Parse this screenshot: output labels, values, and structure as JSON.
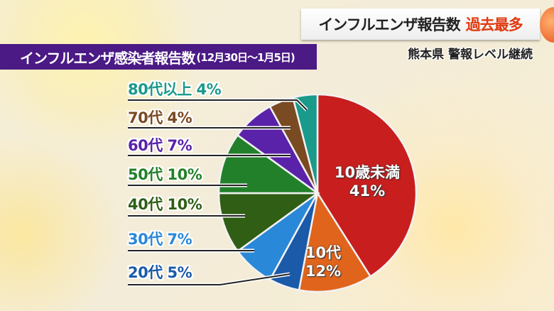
{
  "headline": {
    "main": "インフルエンザ報告数",
    "highlight": "過去最多"
  },
  "subheadline": "熊本県 警報レベル継続",
  "chart_data": {
    "type": "pie",
    "title": "インフルエンザ感染者報告数",
    "period": "(12月30日～1月5日)",
    "unit": "%",
    "slices": [
      {
        "label": "10歳未満",
        "value": 41,
        "color": "#c81e1e",
        "text": "10歳未満",
        "pct": "41%"
      },
      {
        "label": "10代",
        "value": 12,
        "color": "#e0641c",
        "text": "10代",
        "pct": "12%"
      },
      {
        "label": "20代",
        "value": 5,
        "color": "#1a5aa8",
        "text": "20代 5%"
      },
      {
        "label": "30代",
        "value": 7,
        "color": "#2a88d8",
        "text": "30代 7%"
      },
      {
        "label": "40代",
        "value": 10,
        "color": "#2f5e14",
        "text": "40代 10%"
      },
      {
        "label": "50代",
        "value": 10,
        "color": "#23802a",
        "text": "50代 10%"
      },
      {
        "label": "60代",
        "value": 7,
        "color": "#5a22a8",
        "text": "60代 7%"
      },
      {
        "label": "70代",
        "value": 4,
        "color": "#7a4a22",
        "text": "70代 4%"
      },
      {
        "label": "80代以上",
        "value": 4,
        "color": "#1a9a8a",
        "text": "80代以上 4%"
      }
    ]
  }
}
